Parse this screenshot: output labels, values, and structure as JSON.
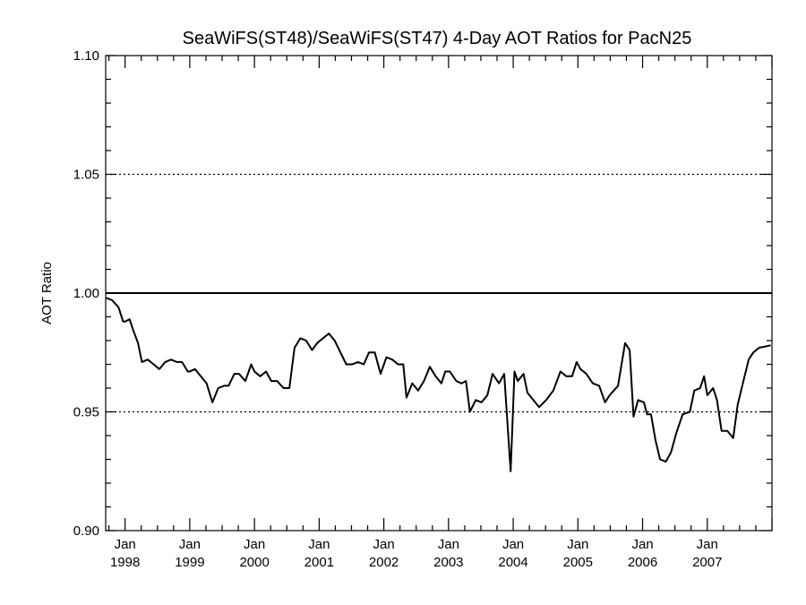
{
  "chart_data": {
    "type": "line",
    "title": "SeaWiFS(ST48)/SeaWiFS(ST47) 4-Day AOT Ratios for PacN25",
    "xlabel": "",
    "ylabel": "AOT Ratio",
    "ylim": [
      0.9,
      1.1
    ],
    "y_ticks": [
      "0.90",
      "0.95",
      "1.00",
      "1.05",
      "1.10"
    ],
    "x_ticks": [
      {
        "month": "Jan",
        "year": "1998",
        "t": 1998.0
      },
      {
        "month": "Jan",
        "year": "1999",
        "t": 1999.0
      },
      {
        "month": "Jan",
        "year": "2000",
        "t": 2000.0
      },
      {
        "month": "Jan",
        "year": "2001",
        "t": 2001.0
      },
      {
        "month": "Jan",
        "year": "2002",
        "t": 2002.0
      },
      {
        "month": "Jan",
        "year": "2003",
        "t": 2003.0
      },
      {
        "month": "Jan",
        "year": "2004",
        "t": 2004.0
      },
      {
        "month": "Jan",
        "year": "2005",
        "t": 2005.0
      },
      {
        "month": "Jan",
        "year": "2006",
        "t": 2006.0
      },
      {
        "month": "Jan",
        "year": "2007",
        "t": 2007.0
      }
    ],
    "xlim": [
      1997.7,
      2008.0
    ],
    "grid": "dotted horizontal lines at 0.95 and 1.05",
    "reference_line": 1.0,
    "colors": {
      "line": "#000000",
      "axes": "#000000",
      "background": "#ffffff"
    },
    "series": [
      {
        "x": [
          1997.71,
          1997.8,
          1997.9,
          1997.97,
          1998.0,
          1998.07,
          1998.13,
          1998.2,
          1998.26,
          1998.35,
          1998.44,
          1998.53,
          1998.62,
          1998.71,
          1998.8,
          1998.88,
          1998.97,
          1999.0,
          1999.08,
          1999.17,
          1999.26,
          1999.35,
          1999.44,
          1999.53,
          1999.6,
          1999.69,
          1999.76,
          1999.86,
          1999.95,
          2000.0,
          2000.09,
          2000.18,
          2000.26,
          2000.35,
          2000.45,
          2000.54,
          2000.62,
          2000.71,
          2000.8,
          2000.89,
          2000.97,
          2001.06,
          2001.15,
          2001.24,
          2001.33,
          2001.42,
          2001.51,
          2001.6,
          2001.69,
          2001.77,
          2001.86,
          2001.95,
          2002.04,
          2002.13,
          2002.22,
          2002.3,
          2002.35,
          2002.44,
          2002.53,
          2002.62,
          2002.71,
          2002.8,
          2002.89,
          2002.95,
          2003.02,
          2003.12,
          2003.2,
          2003.27,
          2003.33,
          2003.42,
          2003.51,
          2003.6,
          2003.68,
          2003.78,
          2003.86,
          2003.96,
          2004.02,
          2004.07,
          2004.16,
          2004.22,
          2004.31,
          2004.4,
          2004.51,
          2004.62,
          2004.73,
          2004.82,
          2004.91,
          2004.98,
          2005.04,
          2005.13,
          2005.23,
          2005.33,
          2005.42,
          2005.49,
          2005.62,
          2005.73,
          2005.8,
          2005.86,
          2005.93,
          2006.02,
          2006.07,
          2006.13,
          2006.2,
          2006.27,
          2006.36,
          2006.44,
          2006.52,
          2006.62,
          2006.73,
          2006.8,
          2006.89,
          2006.95,
          2007.0,
          2007.09,
          2007.15,
          2007.22,
          2007.31,
          2007.4,
          2007.47,
          2007.55,
          2007.64,
          2007.71,
          2007.8,
          2007.98
        ],
        "y": [
          0.998,
          0.997,
          0.994,
          0.988,
          0.988,
          0.989,
          0.984,
          0.979,
          0.971,
          0.972,
          0.97,
          0.968,
          0.971,
          0.972,
          0.971,
          0.971,
          0.967,
          0.967,
          0.968,
          0.965,
          0.962,
          0.954,
          0.96,
          0.961,
          0.961,
          0.966,
          0.966,
          0.963,
          0.97,
          0.967,
          0.965,
          0.967,
          0.963,
          0.963,
          0.96,
          0.96,
          0.977,
          0.981,
          0.98,
          0.976,
          0.979,
          0.981,
          0.983,
          0.98,
          0.975,
          0.97,
          0.97,
          0.971,
          0.97,
          0.975,
          0.975,
          0.966,
          0.973,
          0.972,
          0.97,
          0.97,
          0.956,
          0.962,
          0.959,
          0.963,
          0.969,
          0.965,
          0.962,
          0.967,
          0.967,
          0.963,
          0.962,
          0.963,
          0.95,
          0.955,
          0.954,
          0.957,
          0.966,
          0.962,
          0.966,
          0.925,
          0.967,
          0.963,
          0.966,
          0.958,
          0.955,
          0.952,
          0.955,
          0.959,
          0.967,
          0.965,
          0.965,
          0.971,
          0.968,
          0.966,
          0.962,
          0.961,
          0.954,
          0.957,
          0.961,
          0.979,
          0.976,
          0.948,
          0.955,
          0.954,
          0.949,
          0.949,
          0.938,
          0.93,
          0.929,
          0.933,
          0.941,
          0.949,
          0.95,
          0.959,
          0.96,
          0.965,
          0.957,
          0.96,
          0.955,
          0.942,
          0.942,
          0.939,
          0.953,
          0.962,
          0.972,
          0.975,
          0.977,
          0.978
        ]
      }
    ]
  }
}
